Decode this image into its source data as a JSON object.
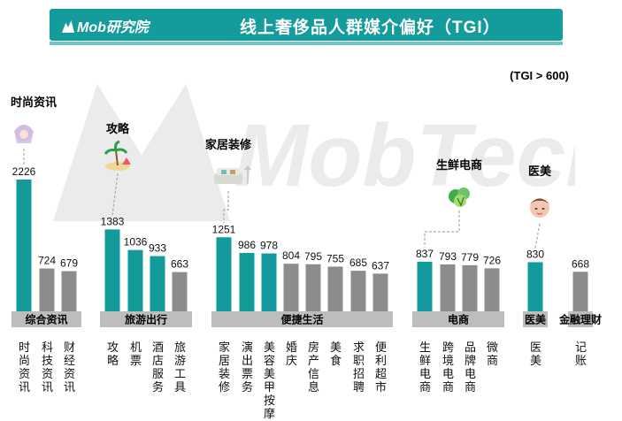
{
  "header": {
    "brand": "Mob研究院",
    "title": "线上奢侈品人群媒介偏好（TGI）"
  },
  "note": "(TGI > 600)",
  "watermark_text": "MobTech",
  "colors": {
    "teal": "#139a9a",
    "gray": "#8c8c8c",
    "group": "#bdbdbd"
  },
  "chart_data": {
    "type": "bar",
    "title": "线上奢侈品人群媒介偏好（TGI）",
    "threshold_note": "(TGI > 600)",
    "ylim": [
      0,
      2226
    ],
    "grid": false,
    "bars": [
      {
        "label": "时尚资讯",
        "value": 2226,
        "group": "综合资讯",
        "highlight": true
      },
      {
        "label": "科技资讯",
        "value": 724,
        "group": "综合资讯",
        "highlight": false
      },
      {
        "label": "财经资讯",
        "value": 679,
        "group": "综合资讯",
        "highlight": false
      },
      {
        "label": "攻略",
        "value": 1383,
        "group": "旅游出行",
        "highlight": true
      },
      {
        "label": "机票",
        "value": 1036,
        "group": "旅游出行",
        "highlight": true
      },
      {
        "label": "酒店服务",
        "value": 933,
        "group": "旅游出行",
        "highlight": true
      },
      {
        "label": "旅游工具",
        "value": 663,
        "group": "旅游出行",
        "highlight": false
      },
      {
        "label": "家居装修",
        "value": 1251,
        "group": "便捷生活",
        "highlight": true
      },
      {
        "label": "演出票务",
        "value": 986,
        "group": "便捷生活",
        "highlight": true
      },
      {
        "label": "美容美甲按摩",
        "value": 978,
        "group": "便捷生活",
        "highlight": true
      },
      {
        "label": "婚庆",
        "value": 804,
        "group": "便捷生活",
        "highlight": false
      },
      {
        "label": "房产信息",
        "value": 795,
        "group": "便捷生活",
        "highlight": false
      },
      {
        "label": "美食",
        "value": 755,
        "group": "便捷生活",
        "highlight": false
      },
      {
        "label": "求职招聘",
        "value": 685,
        "group": "便捷生活",
        "highlight": false
      },
      {
        "label": "便利超市",
        "value": 637,
        "group": "便捷生活",
        "highlight": false
      },
      {
        "label": "生鲜电商",
        "value": 837,
        "group": "电商",
        "highlight": true
      },
      {
        "label": "跨境电商",
        "value": 793,
        "group": "电商",
        "highlight": false
      },
      {
        "label": "品牌电商",
        "value": 779,
        "group": "电商",
        "highlight": false
      },
      {
        "label": "微商",
        "value": 726,
        "group": "电商",
        "highlight": false
      },
      {
        "label": "医美",
        "value": 830,
        "group": "医美",
        "highlight": true
      },
      {
        "label": "记账",
        "value": 668,
        "group": "金融理财",
        "highlight": false
      }
    ],
    "groups": [
      "综合资讯",
      "旅游出行",
      "便捷生活",
      "电商",
      "医美",
      "金融理财"
    ],
    "callouts": [
      {
        "text": "时尚资讯",
        "bar": "时尚资讯",
        "icon": "fashion-girl-icon"
      },
      {
        "text": "攻略",
        "bar": "攻略",
        "icon": "beach-palm-icon"
      },
      {
        "text": "家居装修",
        "bar": "家居装修",
        "icon": "sofa-icon"
      },
      {
        "text": "生鲜电商",
        "bar": "生鲜电商",
        "icon": "vegetable-icon"
      },
      {
        "text": "医美",
        "bar": "医美",
        "icon": "beauty-face-icon"
      }
    ]
  }
}
